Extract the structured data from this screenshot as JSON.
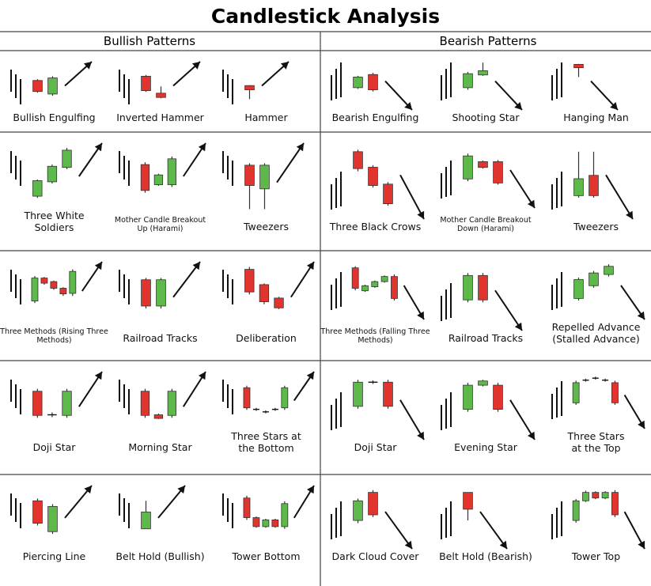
{
  "title": "Candlestick Analysis",
  "sections": {
    "bullish": "Bullish Patterns",
    "bearish": "Bearish Patterns"
  },
  "colors": {
    "bull": "#5cb94a",
    "bear": "#e2342f",
    "ink": "#111111",
    "divider": "#444444"
  },
  "patterns": [
    {
      "id": "bullish-engulfing",
      "side": "bullish",
      "label": [
        "Bullish Engulfing"
      ],
      "prior": "down",
      "candles": [
        {
          "t": "bear",
          "o": 62,
          "c": 36,
          "h": 65,
          "l": 33
        },
        {
          "t": "bull",
          "o": 30,
          "c": 68,
          "h": 72,
          "l": 26
        }
      ],
      "arrow": "up"
    },
    {
      "id": "inverted-hammer",
      "side": "bullish",
      "label": [
        "Inverted Hammer"
      ],
      "prior": "down",
      "candles": [
        {
          "t": "bear",
          "o": 72,
          "c": 38,
          "h": 75,
          "l": 35
        },
        {
          "t": "bear",
          "o": 32,
          "c": 22,
          "h": 48,
          "l": 20
        }
      ],
      "arrow": "up"
    },
    {
      "id": "hammer",
      "side": "bullish",
      "label": [
        "Hammer"
      ],
      "prior": "down",
      "candles": [
        {
          "t": "bear",
          "o": 50,
          "c": 40,
          "h": 51,
          "l": 18
        }
      ],
      "arrow": "up"
    },
    {
      "id": "three-white-soldiers",
      "side": "bullish",
      "label": [
        "Three White",
        "Soldiers"
      ],
      "prior": "down",
      "candles": [
        {
          "t": "bull",
          "o": 15,
          "c": 42,
          "h": 44,
          "l": 12
        },
        {
          "t": "bull",
          "o": 40,
          "c": 67,
          "h": 70,
          "l": 37
        },
        {
          "t": "bull",
          "o": 65,
          "c": 95,
          "h": 99,
          "l": 62
        }
      ],
      "arrow": "up"
    },
    {
      "id": "mother-candle-breakout-up",
      "side": "bullish",
      "label": [
        "Mother Candle Breakout",
        "Up (Harami)"
      ],
      "prior": "down",
      "candles": [
        {
          "t": "bear",
          "o": 70,
          "c": 25,
          "h": 74,
          "l": 21
        },
        {
          "t": "bull",
          "o": 35,
          "c": 52,
          "h": 54,
          "l": 33
        },
        {
          "t": "bull",
          "o": 35,
          "c": 80,
          "h": 84,
          "l": 31
        }
      ],
      "arrow": "up"
    },
    {
      "id": "tweezers-bottom",
      "side": "bullish",
      "label": [
        "Tweezers"
      ],
      "prior": "down",
      "candles": [
        {
          "t": "bear",
          "o": 75,
          "c": 45,
          "h": 78,
          "l": 10
        },
        {
          "t": "bull",
          "o": 40,
          "c": 75,
          "h": 78,
          "l": 10
        }
      ],
      "arrow": "up"
    },
    {
      "id": "three-methods-rising",
      "side": "bullish",
      "label": [
        "Three Methods (Rising Three",
        "Methods)"
      ],
      "prior": "down",
      "candles": [
        {
          "t": "bull",
          "o": 30,
          "c": 75,
          "h": 79,
          "l": 26
        },
        {
          "t": "bear",
          "o": 75,
          "c": 65,
          "h": 77,
          "l": 62
        },
        {
          "t": "bear",
          "o": 68,
          "c": 55,
          "h": 70,
          "l": 52
        },
        {
          "t": "bear",
          "o": 55,
          "c": 44,
          "h": 57,
          "l": 40
        },
        {
          "t": "bull",
          "o": 45,
          "c": 88,
          "h": 92,
          "l": 40
        }
      ],
      "arrow": "up"
    },
    {
      "id": "railroad-tracks-bullish",
      "side": "bullish",
      "label": [
        "Railroad Tracks"
      ],
      "prior": "down",
      "candles": [
        {
          "t": "bear",
          "o": 78,
          "c": 35,
          "h": 81,
          "l": 31
        },
        {
          "t": "bull",
          "o": 35,
          "c": 78,
          "h": 81,
          "l": 31
        }
      ],
      "arrow": "up"
    },
    {
      "id": "deliberation-bullish",
      "side": "bullish",
      "label": [
        "Deliberation"
      ],
      "prior": "down",
      "candles": [
        {
          "t": "bear",
          "o": 95,
          "c": 58,
          "h": 99,
          "l": 54
        },
        {
          "t": "bear",
          "o": 70,
          "c": 42,
          "h": 72,
          "l": 38
        },
        {
          "t": "bear",
          "o": 48,
          "c": 32,
          "h": 50,
          "l": 30
        }
      ],
      "arrow": "up"
    },
    {
      "id": "doji-star-bullish",
      "side": "bullish",
      "label": [
        "Doji Star"
      ],
      "prior": "down",
      "candles": [
        {
          "t": "bear",
          "o": 75,
          "c": 35,
          "h": 79,
          "l": 31
        },
        {
          "t": "doji",
          "o": 36,
          "c": 36,
          "h": 40,
          "l": 32
        },
        {
          "t": "bull",
          "o": 35,
          "c": 75,
          "h": 79,
          "l": 31
        }
      ],
      "arrow": "up"
    },
    {
      "id": "morning-star",
      "side": "bullish",
      "label": [
        "Morning Star"
      ],
      "prior": "down",
      "candles": [
        {
          "t": "bear",
          "o": 75,
          "c": 35,
          "h": 79,
          "l": 31
        },
        {
          "t": "bear",
          "o": 36,
          "c": 30,
          "h": 38,
          "l": 29
        },
        {
          "t": "bull",
          "o": 35,
          "c": 75,
          "h": 79,
          "l": 31
        }
      ],
      "arrow": "up"
    },
    {
      "id": "three-stars-bottom",
      "side": "bullish",
      "label": [
        "Three Stars at",
        "the Bottom"
      ],
      "prior": "down",
      "candles": [
        {
          "t": "bear",
          "o": 75,
          "c": 35,
          "h": 79,
          "l": 31
        },
        {
          "t": "doji",
          "o": 32,
          "c": 32,
          "h": 35,
          "l": 29
        },
        {
          "t": "doji",
          "o": 27,
          "c": 27,
          "h": 30,
          "l": 24
        },
        {
          "t": "doji",
          "o": 32,
          "c": 32,
          "h": 35,
          "l": 29
        },
        {
          "t": "bull",
          "o": 35,
          "c": 75,
          "h": 79,
          "l": 31
        }
      ],
      "arrow": "up"
    },
    {
      "id": "piercing-line",
      "side": "bullish",
      "label": [
        "Piercing Line"
      ],
      "prior": "down",
      "candles": [
        {
          "t": "bear",
          "o": 80,
          "c": 40,
          "h": 84,
          "l": 36
        },
        {
          "t": "bull",
          "o": 25,
          "c": 70,
          "h": 74,
          "l": 21
        }
      ],
      "arrow": "up"
    },
    {
      "id": "belt-hold-bullish",
      "side": "bullish",
      "label": [
        "Belt Hold (Bullish)"
      ],
      "prior": "down",
      "candles": [
        {
          "t": "bull",
          "o": 30,
          "c": 60,
          "h": 80,
          "l": 30
        }
      ],
      "arrow": "up"
    },
    {
      "id": "tower-bottom",
      "side": "bullish",
      "label": [
        "Tower Bottom"
      ],
      "prior": "down",
      "candles": [
        {
          "t": "bear",
          "o": 85,
          "c": 50,
          "h": 89,
          "l": 46
        },
        {
          "t": "bear",
          "o": 50,
          "c": 34,
          "h": 52,
          "l": 32
        },
        {
          "t": "bull",
          "o": 34,
          "c": 46,
          "h": 48,
          "l": 32
        },
        {
          "t": "bear",
          "o": 46,
          "c": 34,
          "h": 48,
          "l": 32
        },
        {
          "t": "bull",
          "o": 34,
          "c": 75,
          "h": 79,
          "l": 30
        }
      ],
      "arrow": "up"
    },
    {
      "id": "bearish-engulfing",
      "side": "bearish",
      "label": [
        "Bearish Engulfing"
      ],
      "prior": "up",
      "candles": [
        {
          "t": "bull",
          "o": 45,
          "c": 70,
          "h": 73,
          "l": 42
        },
        {
          "t": "bear",
          "o": 76,
          "c": 40,
          "h": 80,
          "l": 36
        }
      ],
      "arrow": "down"
    },
    {
      "id": "shooting-star",
      "side": "bearish",
      "label": [
        "Shooting Star"
      ],
      "prior": "up",
      "candles": [
        {
          "t": "bull",
          "o": 45,
          "c": 78,
          "h": 82,
          "l": 40
        },
        {
          "t": "bull",
          "o": 75,
          "c": 85,
          "h": 104,
          "l": 73
        }
      ],
      "arrow": "down"
    },
    {
      "id": "hanging-man",
      "side": "bearish",
      "label": [
        "Hanging Man"
      ],
      "prior": "up",
      "candles": [
        {
          "t": "bear",
          "o": 100,
          "c": 92,
          "h": 101,
          "l": 70
        }
      ],
      "arrow": "down"
    },
    {
      "id": "three-black-crows",
      "side": "bearish",
      "label": [
        "Three Black Crows"
      ],
      "prior": "up",
      "candles": [
        {
          "t": "bear",
          "o": 95,
          "c": 70,
          "h": 98,
          "l": 66
        },
        {
          "t": "bear",
          "o": 72,
          "c": 45,
          "h": 75,
          "l": 42
        },
        {
          "t": "bear",
          "o": 47,
          "c": 18,
          "h": 50,
          "l": 15
        }
      ],
      "arrow": "down"
    },
    {
      "id": "mother-candle-breakout-down",
      "side": "bearish",
      "label": [
        "Mother Candle Breakout",
        "Down (Harami)"
      ],
      "prior": "up",
      "candles": [
        {
          "t": "bull",
          "o": 45,
          "c": 85,
          "h": 89,
          "l": 41
        },
        {
          "t": "bear",
          "o": 75,
          "c": 65,
          "h": 77,
          "l": 63
        },
        {
          "t": "bear",
          "o": 75,
          "c": 38,
          "h": 78,
          "l": 35
        }
      ],
      "arrow": "down"
    },
    {
      "id": "tweezers-top",
      "side": "bearish",
      "label": [
        "Tweezers"
      ],
      "prior": "up",
      "candles": [
        {
          "t": "bull",
          "o": 30,
          "c": 55,
          "h": 95,
          "l": 27
        },
        {
          "t": "bear",
          "o": 60,
          "c": 30,
          "h": 95,
          "l": 27
        }
      ],
      "arrow": "down"
    },
    {
      "id": "three-methods-falling",
      "side": "bearish",
      "label": [
        "Three Methods (Falling Three",
        "Methods)"
      ],
      "prior": "up",
      "candles": [
        {
          "t": "bear",
          "o": 95,
          "c": 55,
          "h": 98,
          "l": 51
        },
        {
          "t": "bull",
          "o": 50,
          "c": 60,
          "h": 62,
          "l": 48
        },
        {
          "t": "bull",
          "o": 58,
          "c": 68,
          "h": 70,
          "l": 56
        },
        {
          "t": "bull",
          "o": 68,
          "c": 78,
          "h": 80,
          "l": 66
        },
        {
          "t": "bear",
          "o": 78,
          "c": 35,
          "h": 82,
          "l": 31
        }
      ],
      "arrow": "down"
    },
    {
      "id": "railroad-tracks-bearish",
      "side": "bearish",
      "label": [
        "Railroad Tracks"
      ],
      "prior": "up",
      "candles": [
        {
          "t": "bull",
          "o": 45,
          "c": 85,
          "h": 89,
          "l": 41
        },
        {
          "t": "bear",
          "o": 85,
          "c": 45,
          "h": 89,
          "l": 41
        }
      ],
      "arrow": "down"
    },
    {
      "id": "repelled-advance",
      "side": "bearish",
      "label": [
        "Repelled Advance",
        "(Stalled Advance)"
      ],
      "prior": "up",
      "candles": [
        {
          "t": "bull",
          "o": 35,
          "c": 72,
          "h": 76,
          "l": 31
        },
        {
          "t": "bull",
          "o": 60,
          "c": 85,
          "h": 89,
          "l": 56
        },
        {
          "t": "bull",
          "o": 82,
          "c": 98,
          "h": 102,
          "l": 78
        }
      ],
      "arrow": "down"
    },
    {
      "id": "doji-star-bearish",
      "side": "bearish",
      "label": [
        "Doji Star"
      ],
      "prior": "up",
      "candles": [
        {
          "t": "bull",
          "o": 50,
          "c": 90,
          "h": 94,
          "l": 46
        },
        {
          "t": "doji",
          "o": 90,
          "c": 90,
          "h": 93,
          "l": 87
        },
        {
          "t": "bear",
          "o": 90,
          "c": 50,
          "h": 94,
          "l": 46
        }
      ],
      "arrow": "down"
    },
    {
      "id": "evening-star",
      "side": "bearish",
      "label": [
        "Evening Star"
      ],
      "prior": "up",
      "candles": [
        {
          "t": "bull",
          "o": 45,
          "c": 85,
          "h": 89,
          "l": 41
        },
        {
          "t": "bull",
          "o": 85,
          "c": 92,
          "h": 94,
          "l": 83
        },
        {
          "t": "bear",
          "o": 85,
          "c": 45,
          "h": 89,
          "l": 41
        }
      ],
      "arrow": "down"
    },
    {
      "id": "three-stars-top",
      "side": "bearish",
      "label": [
        "Three Stars",
        "at the Top"
      ],
      "prior": "up",
      "candles": [
        {
          "t": "bull",
          "o": 45,
          "c": 85,
          "h": 89,
          "l": 41
        },
        {
          "t": "doji",
          "o": 90,
          "c": 90,
          "h": 93,
          "l": 87
        },
        {
          "t": "doji",
          "o": 94,
          "c": 94,
          "h": 97,
          "l": 91
        },
        {
          "t": "doji",
          "o": 90,
          "c": 90,
          "h": 93,
          "l": 87
        },
        {
          "t": "bear",
          "o": 85,
          "c": 45,
          "h": 89,
          "l": 41
        }
      ],
      "arrow": "down"
    },
    {
      "id": "dark-cloud-cover",
      "side": "bearish",
      "label": [
        "Dark Cloud Cover"
      ],
      "prior": "up",
      "candles": [
        {
          "t": "bull",
          "o": 45,
          "c": 80,
          "h": 84,
          "l": 40
        },
        {
          "t": "bear",
          "o": 95,
          "c": 55,
          "h": 99,
          "l": 51
        }
      ],
      "arrow": "down"
    },
    {
      "id": "belt-hold-bearish",
      "side": "bearish",
      "label": [
        "Belt Hold (Bearish)"
      ],
      "prior": "up",
      "candles": [
        {
          "t": "bear",
          "o": 95,
          "c": 65,
          "h": 95,
          "l": 45
        }
      ],
      "arrow": "down"
    },
    {
      "id": "tower-top",
      "side": "bearish",
      "label": [
        "Tower Top"
      ],
      "prior": "up",
      "candles": [
        {
          "t": "bull",
          "o": 45,
          "c": 80,
          "h": 83,
          "l": 41
        },
        {
          "t": "bull",
          "o": 80,
          "c": 95,
          "h": 98,
          "l": 78
        },
        {
          "t": "bear",
          "o": 95,
          "c": 85,
          "h": 97,
          "l": 83
        },
        {
          "t": "bull",
          "o": 85,
          "c": 95,
          "h": 97,
          "l": 83
        },
        {
          "t": "bear",
          "o": 95,
          "c": 55,
          "h": 99,
          "l": 51
        }
      ],
      "arrow": "down"
    }
  ]
}
